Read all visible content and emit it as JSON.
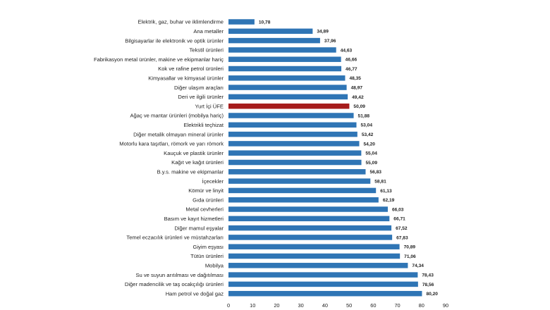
{
  "chart_data": {
    "type": "bar",
    "orientation": "horizontal",
    "title": "",
    "xlabel": "",
    "ylabel": "",
    "xlim": [
      0,
      90
    ],
    "x_ticks": [
      "0",
      "10",
      "20",
      "30",
      "40",
      "50",
      "60",
      "70",
      "80",
      "90"
    ],
    "grid": false,
    "legend": "none",
    "colors": {
      "bar": "#2f75b5",
      "highlight": "#a61c1c"
    },
    "highlight_category": "Yurt İçi ÜFE",
    "categories": [
      "Elektrik, gaz, buhar ve iklimlendirme",
      "Ana metaller",
      "Bilgisayarlar ile elektronik ve optik ürünler",
      "Tekstil ürünleri",
      "Fabrikasyon metal ürünler, makine ve ekipmanlar hariç",
      "Kok ve rafine petrol ürünleri",
      "Kimyasallar ve kimyasal ürünler",
      "Diğer ulaşım araçları",
      "Deri ve ilgili ürünler",
      "Yurt İçi ÜFE",
      "Ağaç ve mantar ürünleri (mobilya hariç)",
      "Elektrikli teçhizat",
      "Diğer metalik olmayan mineral ürünler",
      "Motorlu kara taşıtları, römork ve yarı römork",
      "Kauçuk ve plastik ürünler",
      "Kağıt ve kağıt ürünleri",
      "B.y.s. makine ve ekipmanlar",
      "İçecekler",
      "Kömür ve linyit",
      "Gıda ürünleri",
      "Metal cevherleri",
      "Basım ve kayıt hizmetleri",
      "Diğer mamul eşyalar",
      "Temel eczacılık ürünleri ve müstahzarları",
      "Giyim eşyası",
      "Tütün ürünleri",
      "Mobilya",
      "Su ve suyun arıtılması ve dağıtılması",
      "Diğer madencilik ve taş ocakçılığı ürünleri",
      "Ham petrol ve doğal gaz"
    ],
    "values": [
      10.78,
      34.89,
      37.96,
      44.63,
      46.66,
      46.77,
      48.35,
      48.97,
      49.42,
      50.09,
      51.88,
      53.04,
      53.42,
      54.2,
      55.04,
      55.09,
      56.83,
      58.81,
      61.13,
      62.19,
      66.03,
      66.71,
      67.52,
      67.83,
      70.89,
      71.06,
      74.34,
      78.43,
      78.56,
      80.2
    ],
    "value_labels": [
      "10,78",
      "34,89",
      "37,96",
      "44,63",
      "46,66",
      "46,77",
      "48,35",
      "48,97",
      "49,42",
      "50,09",
      "51,88",
      "53,04",
      "53,42",
      "54,20",
      "55,04",
      "55,09",
      "56,83",
      "58,81",
      "61,13",
      "62,19",
      "66,03",
      "66,71",
      "67,52",
      "67,83",
      "70,89",
      "71,06",
      "74,34",
      "78,43",
      "78,56",
      "80,20"
    ]
  }
}
